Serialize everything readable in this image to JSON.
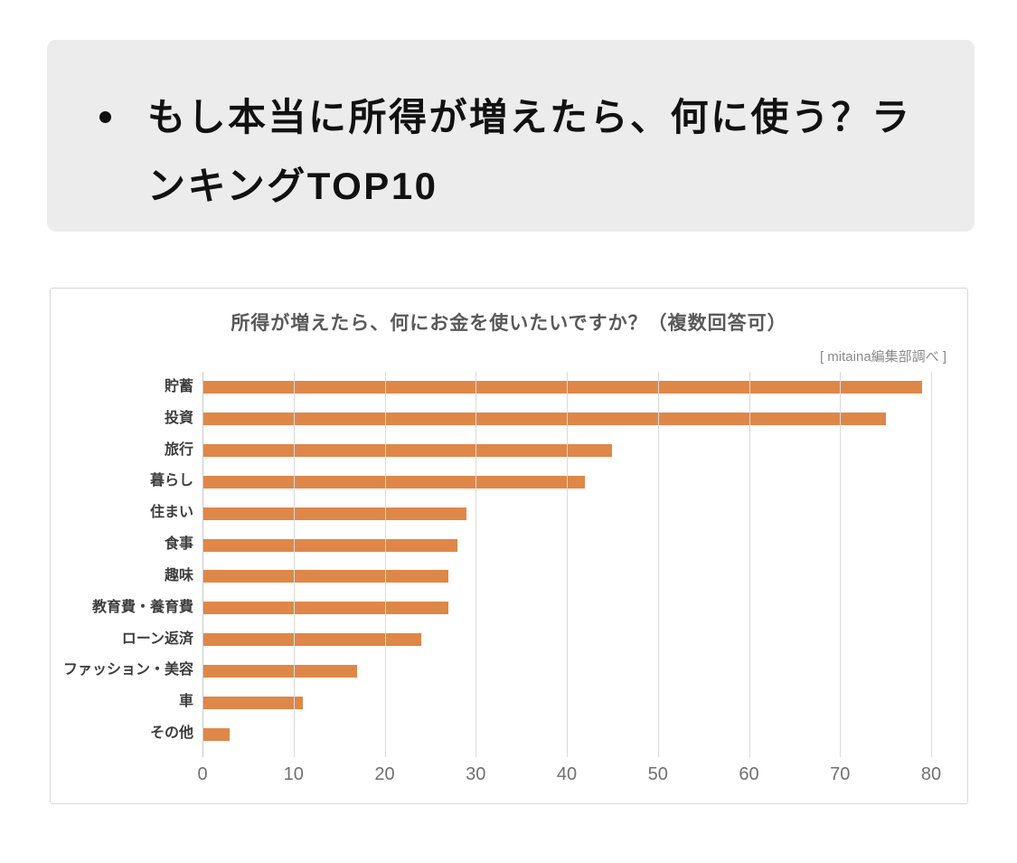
{
  "header": {
    "title": "もし本当に所得が増えたら、何に使う？ランキングTOP10"
  },
  "chart_data": {
    "type": "bar",
    "orientation": "horizontal",
    "title": "所得が増えたら、何にお金を使いたいですか？（複数回答可）",
    "source": "[ mitaina編集部調べ ]",
    "categories": [
      "貯蓄",
      "投資",
      "旅行",
      "暮らし",
      "住まい",
      "食事",
      "趣味",
      "教育費・養育費",
      "ローン返済",
      "ファッション・美容",
      "車",
      "その他"
    ],
    "values": [
      79,
      75,
      45,
      42,
      29,
      28,
      27,
      27,
      24,
      17,
      11,
      3
    ],
    "xlabel": "",
    "ylabel": "",
    "xlim": [
      0,
      80
    ],
    "xticks": [
      0,
      10,
      20,
      30,
      40,
      50,
      60,
      70,
      80
    ],
    "grid": true,
    "legend": "none",
    "colors": {
      "bar": "#DE8749",
      "gridline": "#DADADA",
      "axis_line": "#C8C8C8",
      "title_text": "#595959",
      "category_text": "#3D3D3D",
      "tick_text": "#707070",
      "header_bg": "#ECECEC"
    }
  }
}
